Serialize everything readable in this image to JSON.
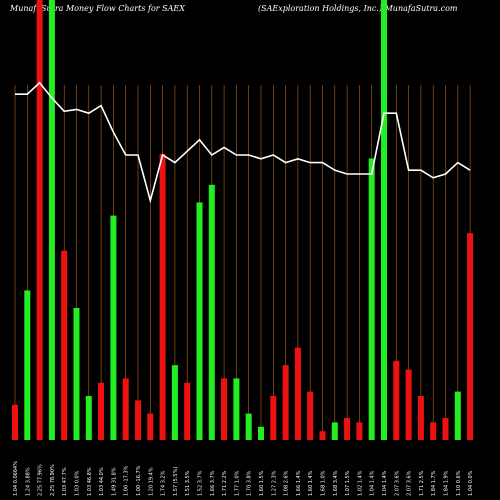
{
  "header": {
    "left_title": "MunafaSutra  Money Flow  Charts for SAEX",
    "right_title": "(SAExploration Holdings, Inc.) MunafaSutra.com"
  },
  "colors": {
    "background": "#000000",
    "up_bar": "#22ee22",
    "down_bar": "#ee1111",
    "gridline": "#b8651a",
    "line": "#ffffff"
  },
  "chart_data": {
    "type": "bar",
    "title": "MunafaSutra  Money Flow  Charts for SAEX",
    "subtitle": "(SAExploration Holdings, Inc.) MunafaSutra.com",
    "ylim": [
      0,
      100
    ],
    "grid": true,
    "categories": [
      "1.04 0.0664%",
      "1.24 3.88%",
      "2.25 77.96%",
      "2.25 78.90%",
      "1.03 47.7%",
      "1.03 0.0%",
      "1.03 46.8%",
      "1.03 44.0%",
      "1.49 31.8%",
      "1.00 -17.3%",
      "1.00 -16.7%",
      "1.20 19.4%",
      "1.74 3.2%",
      "1.57 (5.5%)",
      "1.51 3.5%",
      "1.52 3.7%",
      "1.66 3.7%",
      "1.71 2.2%",
      "1.77 1.0%",
      "1.70 3.8%",
      "1.60 1.5%",
      "1.27 2.3%",
      "1.08 2.6%",
      "1.66 1.4%",
      "1.60 1.4%",
      "1.68 1.0%",
      "1.68 3.4%",
      "1.07 1.5%",
      "1.02 1.4%",
      "1.04 1.4%",
      "1.04 1.4%",
      "2.07 3.6%",
      "2.07 3.6%",
      "1.71 2.5%",
      "1.84 1.7%",
      "1.84 1.9%",
      "1.10 0.6%",
      "1.04 0.0%"
    ],
    "series": [
      {
        "values": [
          8,
          34,
          100,
          100,
          43,
          30,
          10,
          13,
          51,
          14,
          9,
          6,
          65,
          17,
          13,
          54,
          58,
          14,
          14,
          6,
          3,
          10,
          17,
          21,
          11,
          2,
          4,
          5,
          4,
          64,
          100,
          18,
          16,
          10,
          4,
          5,
          11,
          47
        ],
        "directions": [
          "down",
          "up",
          "down",
          "up",
          "down",
          "up",
          "up",
          "down",
          "up",
          "down",
          "down",
          "down",
          "down",
          "up",
          "down",
          "up",
          "up",
          "down",
          "up",
          "up",
          "up",
          "down",
          "down",
          "down",
          "down",
          "down",
          "up",
          "down",
          "down",
          "up",
          "up",
          "down",
          "down",
          "down",
          "down",
          "down",
          "up",
          "down"
        ]
      },
      {
        "values": [
          9.1,
          9.1,
          9.4,
          9.0,
          8.65,
          8.7,
          8.6,
          8.8,
          8.1,
          7.5,
          7.5,
          6.3,
          7.5,
          7.3,
          7.6,
          7.9,
          7.5,
          7.7,
          7.5,
          7.5,
          7.4,
          7.5,
          7.3,
          7.4,
          7.3,
          7.3,
          7.1,
          7.0,
          7.0,
          7.0,
          8.6,
          8.6,
          7.1,
          7.1,
          6.9,
          7.0,
          7.3,
          7.1
        ]
      }
    ]
  }
}
